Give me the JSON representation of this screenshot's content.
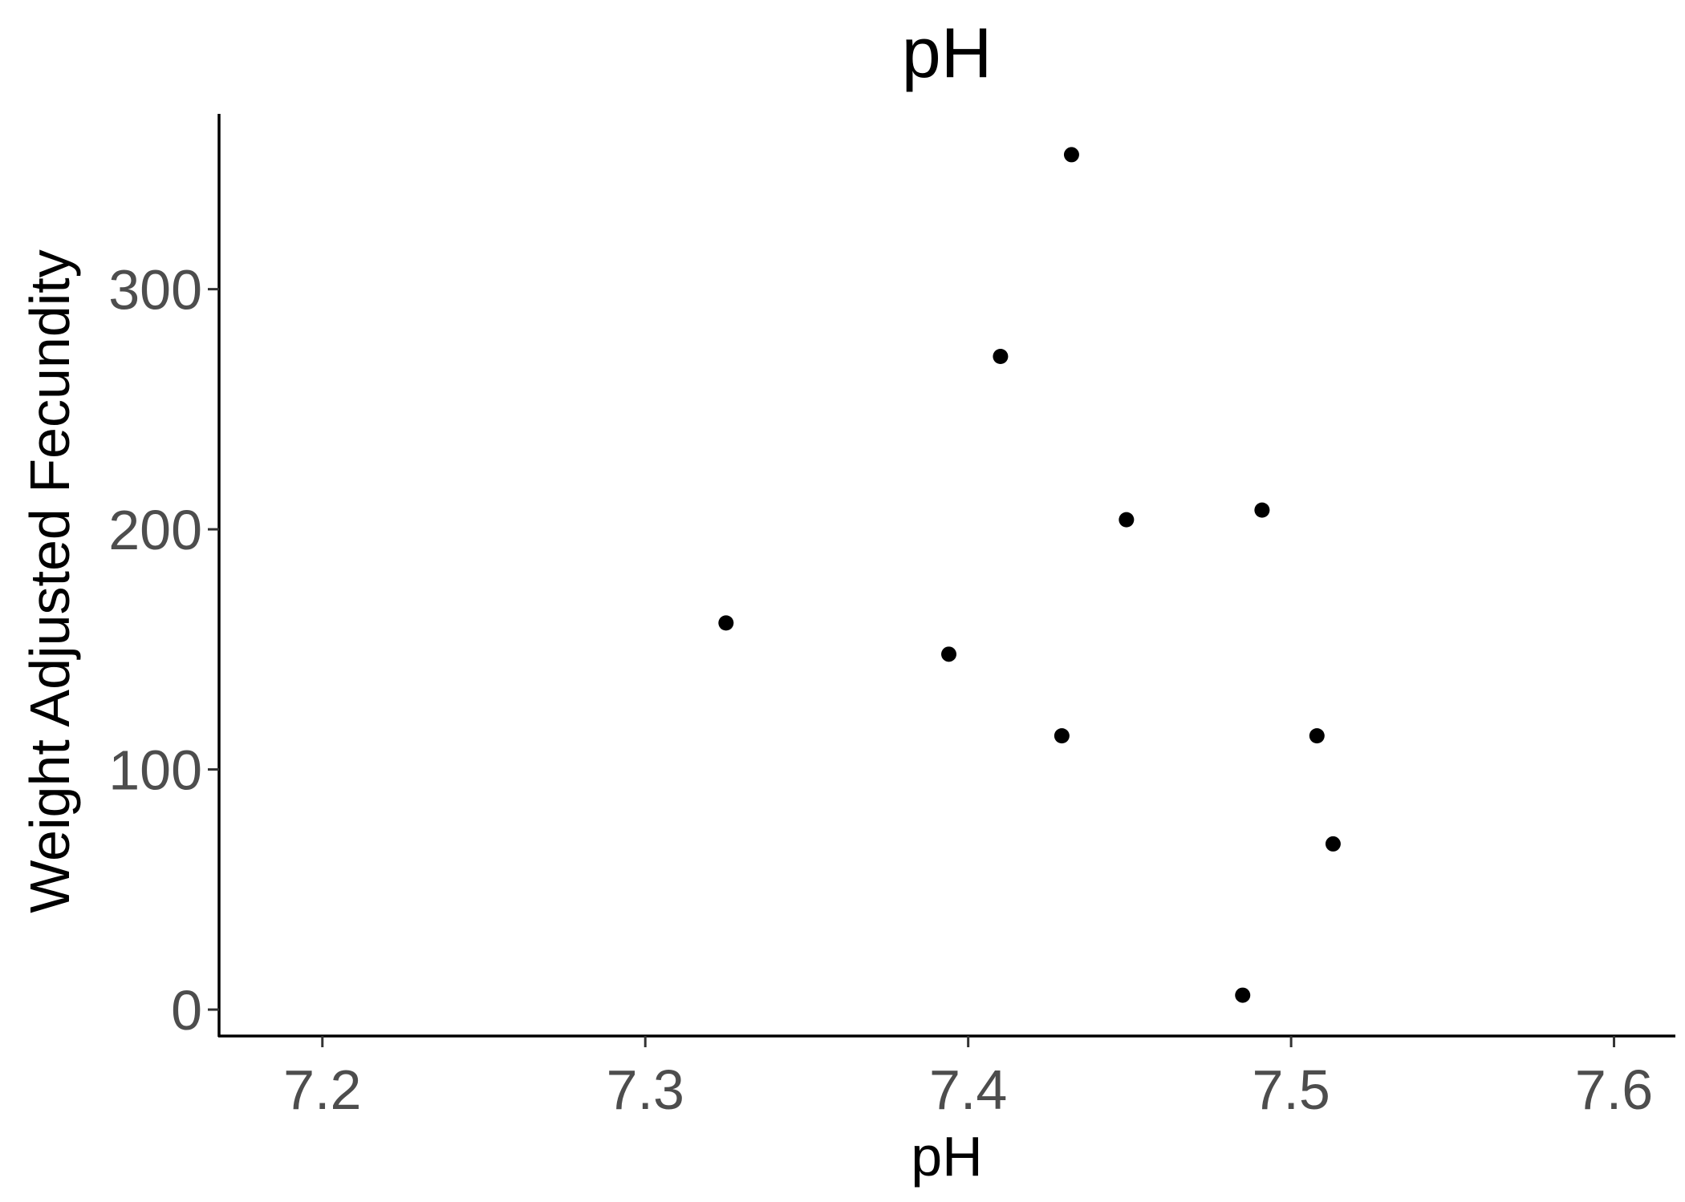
{
  "chart_data": {
    "type": "scatter",
    "title": "pH",
    "xlabel": "pH",
    "ylabel": "Weight Adjusted Fecundity",
    "xlim": [
      7.168,
      7.619
    ],
    "ylim": [
      -11,
      373
    ],
    "xticks": [
      7.2,
      7.3,
      7.4,
      7.5,
      7.6
    ],
    "xtick_labels": [
      "7.2",
      "7.3",
      "7.4",
      "7.5",
      "7.6"
    ],
    "yticks": [
      0,
      100,
      200,
      300
    ],
    "ytick_labels": [
      "0",
      "100",
      "200",
      "300"
    ],
    "grid": false,
    "legend": "none",
    "point_color": "#000000",
    "points": [
      {
        "x": 7.325,
        "y": 161
      },
      {
        "x": 7.394,
        "y": 148
      },
      {
        "x": 7.41,
        "y": 272
      },
      {
        "x": 7.429,
        "y": 114
      },
      {
        "x": 7.432,
        "y": 356
      },
      {
        "x": 7.449,
        "y": 204
      },
      {
        "x": 7.485,
        "y": 6
      },
      {
        "x": 7.491,
        "y": 208
      },
      {
        "x": 7.508,
        "y": 114
      },
      {
        "x": 7.513,
        "y": 69
      }
    ]
  }
}
